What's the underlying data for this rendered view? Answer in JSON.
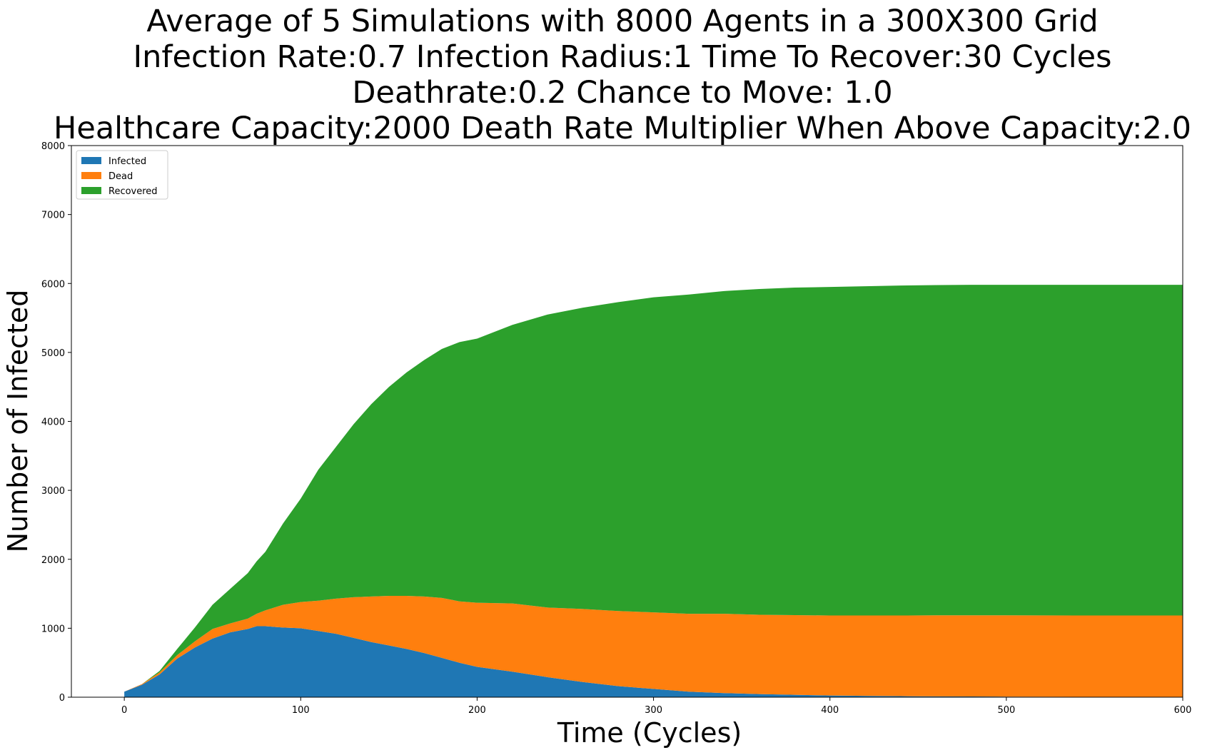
{
  "chart_data": {
    "type": "area",
    "stacked": true,
    "title_lines": [
      "Average of 5 Simulations with 8000 Agents in a 300X300 Grid",
      "Infection Rate:0.7  Infection Radius:1  Time To Recover:30 Cycles",
      "Deathrate:0.2  Chance to Move: 1.0",
      "Healthcare Capacity:2000  Death Rate Multiplier When Above Capacity:2.0"
    ],
    "xlabel": "Time (Cycles)",
    "ylabel": "Number of Infected",
    "xlim": [
      -30,
      600
    ],
    "ylim": [
      0,
      8000
    ],
    "xticks": [
      0,
      100,
      200,
      300,
      400,
      500,
      600
    ],
    "yticks": [
      0,
      1000,
      2000,
      3000,
      4000,
      5000,
      6000,
      7000,
      8000
    ],
    "legend_position": "upper-left",
    "x": [
      0,
      10,
      20,
      30,
      40,
      50,
      60,
      70,
      75,
      80,
      90,
      100,
      110,
      120,
      130,
      140,
      150,
      160,
      170,
      180,
      190,
      200,
      220,
      240,
      260,
      280,
      300,
      320,
      340,
      360,
      380,
      400,
      420,
      440,
      460,
      480,
      500,
      520,
      540,
      560,
      580,
      600
    ],
    "series": [
      {
        "name": "Infected",
        "color": "#1f77b4",
        "values": [
          80,
          180,
          330,
          560,
          720,
          850,
          940,
          990,
          1030,
          1030,
          1010,
          1000,
          960,
          920,
          860,
          800,
          750,
          700,
          640,
          570,
          500,
          440,
          370,
          290,
          220,
          160,
          120,
          80,
          60,
          45,
          35,
          25,
          20,
          15,
          12,
          10,
          8,
          6,
          5,
          4,
          3,
          3
        ]
      },
      {
        "name": "Dead",
        "color": "#ff7f0e",
        "values": [
          0,
          10,
          30,
          50,
          90,
          140,
          130,
          150,
          180,
          230,
          330,
          380,
          440,
          510,
          590,
          660,
          720,
          770,
          820,
          870,
          890,
          930,
          990,
          1010,
          1060,
          1090,
          1110,
          1130,
          1150,
          1150,
          1155,
          1160,
          1165,
          1170,
          1175,
          1178,
          1180,
          1180,
          1180,
          1181,
          1182,
          1182
        ]
      },
      {
        "name": "Recovered",
        "color": "#2ca02c",
        "values": [
          0,
          0,
          20,
          90,
          200,
          350,
          500,
          660,
          760,
          850,
          1180,
          1500,
          1900,
          2200,
          2510,
          2790,
          3030,
          3240,
          3430,
          3610,
          3760,
          3830,
          4040,
          4250,
          4370,
          4480,
          4570,
          4630,
          4680,
          4725,
          4750,
          4765,
          4775,
          4785,
          4790,
          4792,
          4792,
          4794,
          4795,
          4795,
          4795,
          4795
        ]
      }
    ]
  }
}
